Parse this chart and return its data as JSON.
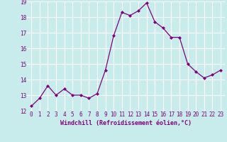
{
  "x": [
    0,
    1,
    2,
    3,
    4,
    5,
    6,
    7,
    8,
    9,
    10,
    11,
    12,
    13,
    14,
    15,
    16,
    17,
    18,
    19,
    20,
    21,
    22,
    23
  ],
  "y": [
    12.3,
    12.8,
    13.6,
    13.0,
    13.4,
    13.0,
    13.0,
    12.8,
    13.1,
    14.6,
    16.8,
    18.3,
    18.1,
    18.4,
    18.9,
    17.7,
    17.3,
    16.7,
    16.7,
    15.0,
    14.5,
    14.1,
    14.3,
    14.6
  ],
  "line_color": "#800080",
  "marker": "D",
  "marker_size": 2.0,
  "bg_color": "#c8ecec",
  "grid_color": "#ffffff",
  "xlabel": "Windchill (Refroidissement éolien,°C)",
  "xlabel_color": "#800080",
  "tick_color": "#800080",
  "ylim": [
    12,
    19
  ],
  "xlim_min": -0.5,
  "xlim_max": 23.5,
  "yticks": [
    12,
    13,
    14,
    15,
    16,
    17,
    18,
    19
  ],
  "xticks": [
    0,
    1,
    2,
    3,
    4,
    5,
    6,
    7,
    8,
    9,
    10,
    11,
    12,
    13,
    14,
    15,
    16,
    17,
    18,
    19,
    20,
    21,
    22,
    23
  ],
  "tick_fontsize": 5.5,
  "xlabel_fontsize": 6.0
}
